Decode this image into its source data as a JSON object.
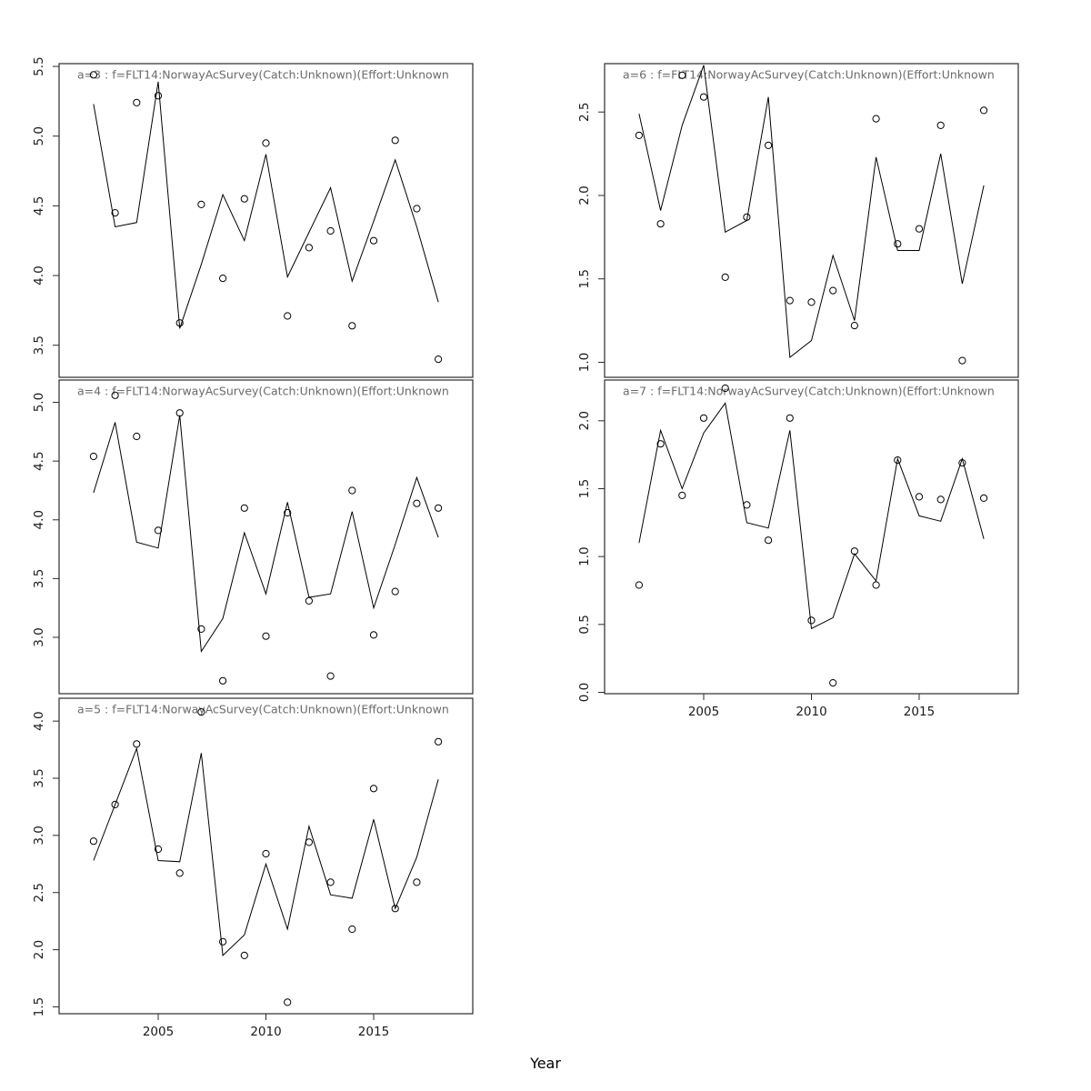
{
  "xlabel": "Year",
  "colors": {
    "line": "#000000",
    "point_stroke": "#000000",
    "panel_border": "#2b2b2b",
    "title_text": "#6b6b6b",
    "tick_text": "#1a1a1a",
    "background": "#ffffff"
  },
  "x_axis": {
    "ticks": [
      2005,
      2010,
      2015
    ],
    "range": [
      2000.4,
      2019.6
    ]
  },
  "chart_data": [
    {
      "type": "line",
      "id": "a3",
      "title": "a=3  :  f=FLT14:NorwayAcSurvey(Catch:Unknown)(Effort:Unknown",
      "row": 0,
      "col": 0,
      "ylim": [
        3.27,
        5.52
      ],
      "yticks": [
        3.5,
        4.0,
        4.5,
        5.0,
        5.5
      ],
      "show_x_labels": false,
      "x": [
        2002,
        2003,
        2004,
        2005,
        2006,
        2007,
        2008,
        2009,
        2010,
        2011,
        2012,
        2013,
        2014,
        2015,
        2016,
        2017,
        2018
      ],
      "series": [
        {
          "name": "fitted-line",
          "values": [
            5.23,
            4.35,
            4.38,
            5.39,
            3.62,
            4.08,
            4.58,
            4.25,
            4.87,
            3.99,
            4.31,
            4.63,
            3.96,
            4.39,
            4.83,
            4.35,
            3.81
          ]
        },
        {
          "name": "observed-points",
          "values": [
            5.44,
            4.45,
            5.24,
            5.29,
            3.66,
            4.51,
            3.98,
            4.55,
            4.95,
            3.71,
            4.2,
            4.32,
            3.64,
            4.25,
            4.97,
            4.48,
            3.4
          ]
        }
      ]
    },
    {
      "type": "line",
      "id": "a6",
      "title": "a=6  :  f=FLT14:NorwayAcSurvey(Catch:Unknown)(Effort:Unknown",
      "row": 0,
      "col": 1,
      "ylim": [
        0.91,
        2.79
      ],
      "yticks": [
        1.0,
        1.5,
        2.0,
        2.5
      ],
      "show_x_labels": false,
      "x": [
        2002,
        2003,
        2004,
        2005,
        2006,
        2007,
        2008,
        2009,
        2010,
        2011,
        2012,
        2013,
        2014,
        2015,
        2016,
        2017,
        2018
      ],
      "series": [
        {
          "name": "fitted-line",
          "values": [
            2.49,
            1.91,
            2.42,
            2.78,
            1.78,
            1.85,
            2.59,
            1.03,
            1.13,
            1.64,
            1.25,
            2.23,
            1.67,
            1.67,
            2.25,
            1.47,
            2.06
          ]
        },
        {
          "name": "observed-points",
          "values": [
            2.36,
            1.83,
            2.72,
            2.59,
            1.51,
            1.87,
            2.3,
            1.37,
            1.36,
            1.43,
            1.22,
            2.46,
            1.71,
            1.8,
            2.42,
            1.01,
            2.51
          ]
        }
      ]
    },
    {
      "type": "line",
      "id": "a4",
      "title": "a=4  :  f=FLT14:NorwayAcSurvey(Catch:Unknown)(Effort:Unknown",
      "row": 1,
      "col": 0,
      "ylim": [
        2.52,
        5.19
      ],
      "yticks": [
        3.0,
        3.5,
        4.0,
        4.5,
        5.0
      ],
      "show_x_labels": false,
      "x": [
        2002,
        2003,
        2004,
        2005,
        2006,
        2007,
        2008,
        2009,
        2010,
        2011,
        2012,
        2013,
        2014,
        2015,
        2016,
        2017,
        2018
      ],
      "series": [
        {
          "name": "fitted-line",
          "values": [
            4.23,
            4.83,
            3.81,
            3.76,
            4.89,
            2.88,
            3.16,
            3.89,
            3.37,
            4.15,
            3.34,
            3.37,
            4.07,
            3.25,
            3.79,
            4.36,
            3.85
          ]
        },
        {
          "name": "observed-points",
          "values": [
            4.54,
            5.06,
            4.71,
            3.91,
            4.91,
            3.07,
            2.63,
            4.1,
            3.01,
            4.06,
            3.31,
            2.67,
            4.25,
            3.02,
            3.39,
            4.14,
            4.1
          ]
        }
      ]
    },
    {
      "type": "line",
      "id": "a7",
      "title": "a=7  :  f=FLT14:NorwayAcSurvey(Catch:Unknown)(Effort:Unknown",
      "row": 1,
      "col": 1,
      "ylim": [
        -0.01,
        2.3
      ],
      "yticks": [
        0.0,
        0.5,
        1.0,
        1.5,
        2.0
      ],
      "show_x_labels": true,
      "x": [
        2002,
        2003,
        2004,
        2005,
        2006,
        2007,
        2008,
        2009,
        2010,
        2011,
        2012,
        2013,
        2014,
        2015,
        2016,
        2017,
        2018
      ],
      "series": [
        {
          "name": "fitted-line",
          "values": [
            1.1,
            1.93,
            1.5,
            1.91,
            2.13,
            1.25,
            1.21,
            1.93,
            0.47,
            0.55,
            1.02,
            0.82,
            1.72,
            1.3,
            1.26,
            1.72,
            1.13
          ]
        },
        {
          "name": "observed-points",
          "values": [
            0.79,
            1.83,
            1.45,
            2.02,
            2.24,
            1.38,
            1.12,
            2.02,
            0.53,
            0.07,
            1.04,
            0.79,
            1.71,
            1.44,
            1.42,
            1.69,
            1.43
          ]
        }
      ]
    },
    {
      "type": "line",
      "id": "a5",
      "title": "a=5  :  f=FLT14:NorwayAcSurvey(Catch:Unknown)(Effort:Unknown",
      "row": 2,
      "col": 0,
      "ylim": [
        1.44,
        4.2
      ],
      "yticks": [
        1.5,
        2.0,
        2.5,
        3.0,
        3.5,
        4.0
      ],
      "show_x_labels": true,
      "x": [
        2002,
        2003,
        2004,
        2005,
        2006,
        2007,
        2008,
        2009,
        2010,
        2011,
        2012,
        2013,
        2014,
        2015,
        2016,
        2017,
        2018
      ],
      "series": [
        {
          "name": "fitted-line",
          "values": [
            2.78,
            3.27,
            3.76,
            2.78,
            2.77,
            3.72,
            1.95,
            2.13,
            2.75,
            2.18,
            3.08,
            2.48,
            2.45,
            3.14,
            2.36,
            2.81,
            3.49
          ]
        },
        {
          "name": "observed-points",
          "values": [
            2.95,
            3.27,
            3.8,
            2.88,
            2.67,
            4.08,
            2.07,
            1.95,
            2.84,
            1.54,
            2.94,
            2.59,
            2.18,
            3.41,
            2.36,
            2.59,
            3.82
          ]
        }
      ]
    }
  ]
}
